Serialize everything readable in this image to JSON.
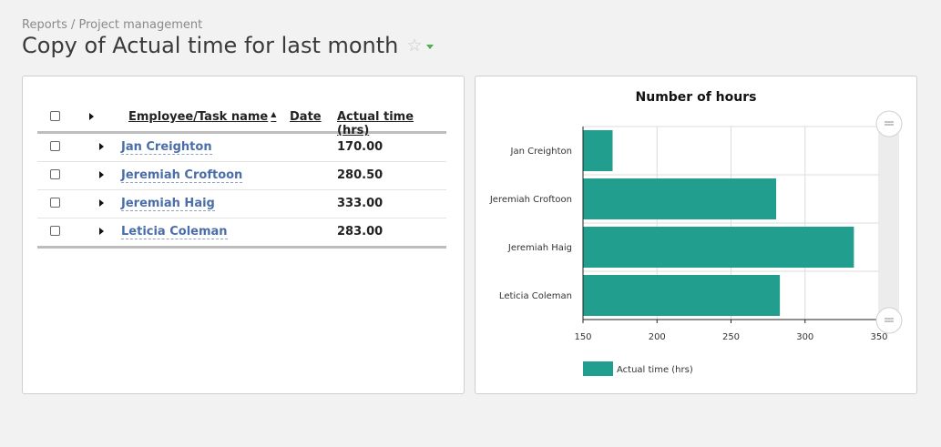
{
  "breadcrumb": "Reports / Project management",
  "page_title": "Copy of Actual time for last month",
  "icons": {
    "favorite": "star-outline-icon",
    "options": "caret-down-icon"
  },
  "colors": {
    "accent": "#4caf50",
    "bar": "#219e8d",
    "link": "#4a6ea9"
  },
  "table": {
    "headers": {
      "name": "Employee/Task name",
      "date": "Date",
      "actual": "Actual time (hrs)"
    },
    "sort": {
      "column": "Employee/Task name",
      "direction": "ascending"
    },
    "rows": [
      {
        "name": "Jan Creighton",
        "date": "",
        "actual": "170.00"
      },
      {
        "name": "Jeremiah Croftoon",
        "date": "",
        "actual": "280.50"
      },
      {
        "name": "Jeremiah Haig",
        "date": "",
        "actual": "333.00"
      },
      {
        "name": "Leticia Coleman",
        "date": "",
        "actual": "283.00"
      }
    ]
  },
  "chart_data": {
    "type": "bar",
    "orientation": "horizontal",
    "title": "Number of hours",
    "categories": [
      "Jan Creighton",
      "Jeremiah Croftoon",
      "Jeremiah Haig",
      "Leticia Coleman"
    ],
    "series": [
      {
        "name": "Actual time (hrs)",
        "values": [
          170,
          280.5,
          333,
          283
        ]
      }
    ],
    "xlim": [
      150,
      350
    ],
    "xticks": [
      "150",
      "200",
      "250",
      "300",
      "350"
    ],
    "grid": true,
    "legend": "bottom-left",
    "scrollbar": "right"
  }
}
